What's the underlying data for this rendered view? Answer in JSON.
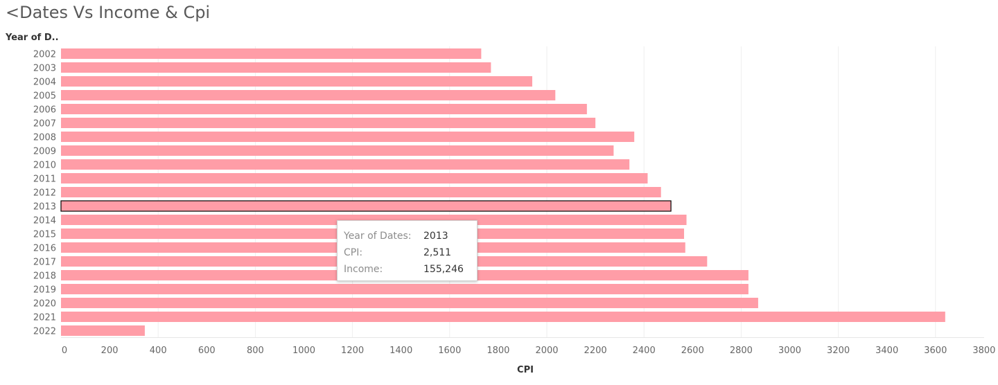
{
  "title": "<Dates Vs Income & Cpi",
  "chart_data": {
    "type": "bar",
    "orientation": "horizontal",
    "y_header": "Year of D..",
    "xlabel": "CPI",
    "categories": [
      "2002",
      "2003",
      "2004",
      "2005",
      "2006",
      "2007",
      "2008",
      "2009",
      "2010",
      "2011",
      "2012",
      "2013",
      "2014",
      "2015",
      "2016",
      "2017",
      "2018",
      "2019",
      "2020",
      "2021",
      "2022"
    ],
    "values": [
      1730,
      1770,
      1940,
      2035,
      2165,
      2200,
      2360,
      2275,
      2340,
      2415,
      2470,
      2511,
      2575,
      2565,
      2570,
      2660,
      2830,
      2830,
      2870,
      3640,
      345
    ],
    "xlim": [
      0,
      3800
    ],
    "xticks": [
      0,
      200,
      400,
      600,
      800,
      1000,
      1200,
      1400,
      1600,
      1800,
      2000,
      2200,
      2400,
      2600,
      2800,
      3000,
      3200,
      3400,
      3600,
      3800
    ],
    "highlighted_category": "2013",
    "bar_color": "#ff9da7",
    "highlight_stroke": "#000000",
    "grid": "vertical"
  },
  "tooltip": {
    "rows": [
      {
        "label": "Year of Dates:",
        "value": "2013"
      },
      {
        "label": "CPI:",
        "value": "2,511"
      },
      {
        "label": "Income:",
        "value": "155,246"
      }
    ]
  }
}
